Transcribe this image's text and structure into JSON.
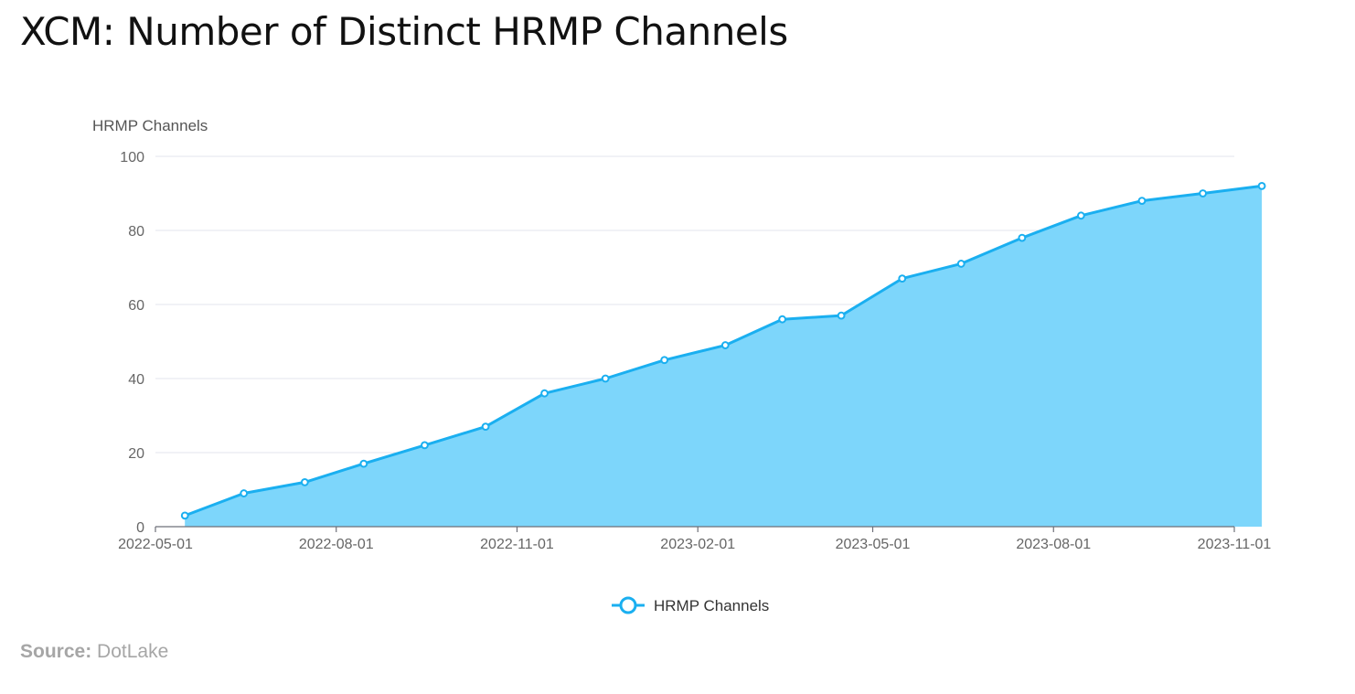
{
  "title": "XCM: Number of Distinct HRMP Channels",
  "source": {
    "label": "Source:",
    "value": "DotLake"
  },
  "colors": {
    "line": "#1aaff0",
    "area": "#7dd6fb",
    "grid": "#e3e6ee",
    "axis": "#6e7079"
  },
  "chart_data": {
    "type": "area",
    "ylabel": "HRMP Channels",
    "ylim": [
      0,
      100
    ],
    "yticks": [
      0,
      20,
      40,
      60,
      80,
      100
    ],
    "xlim": [
      "2022-05-01",
      "2023-11-01"
    ],
    "xticks": [
      "2022-05-01",
      "2022-08-01",
      "2022-11-01",
      "2023-02-01",
      "2023-05-01",
      "2023-08-01",
      "2023-11-01"
    ],
    "grid": true,
    "legend_position": "bottom-center",
    "series": [
      {
        "name": "HRMP Channels",
        "x": [
          "2022-05-16",
          "2022-06-15",
          "2022-07-16",
          "2022-08-15",
          "2022-09-15",
          "2022-10-16",
          "2022-11-15",
          "2022-12-16",
          "2023-01-15",
          "2023-02-15",
          "2023-03-16",
          "2023-04-15",
          "2023-05-16",
          "2023-06-15",
          "2023-07-16",
          "2023-08-15",
          "2023-09-15",
          "2023-10-16",
          "2023-11-15"
        ],
        "values": [
          3,
          9,
          12,
          17,
          22,
          27,
          36,
          40,
          45,
          49,
          56,
          57,
          67,
          71,
          78,
          84,
          88,
          90,
          92
        ]
      }
    ]
  }
}
